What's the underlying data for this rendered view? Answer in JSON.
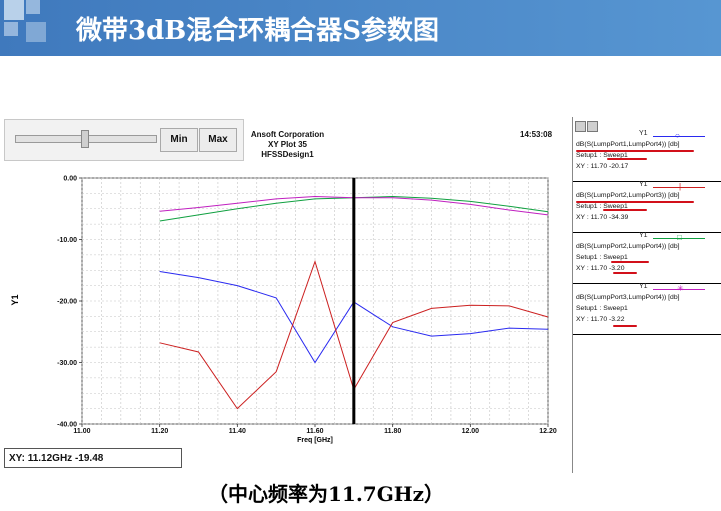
{
  "slide": {
    "title": "微带3dB混合环耦合器S参数图",
    "caption": "（中心频率为11.7GHz）"
  },
  "toolbar": {
    "min_label": "Min",
    "max_label": "Max"
  },
  "plot_header": {
    "company": "Ansoft Corporation",
    "plot_name": "XY Plot 35",
    "design": "HFSSDesign1",
    "time": "14:53:08"
  },
  "readout": "XY: 11.12GHz -19.48",
  "colors": {
    "title_bar": "#4a86c6",
    "s14": "#2a2af0",
    "s13": "#cc2020",
    "s12": "#c020c0",
    "s24": "#10a040"
  },
  "legend": [
    {
      "axis": "Y1",
      "expr": "dB(S(LumpPort1,LumpPort4)) [db]",
      "setup": "Setup1 : Sweep1",
      "readout": "XY : 11.70 -20.17",
      "color": "#2a2af0",
      "marker": "○"
    },
    {
      "axis": "Y1",
      "expr": "dB(S(LumpPort2,LumpPort3)) [db]",
      "setup": "Setup1 : Sweep1",
      "readout": "XY : 11.70 -34.39",
      "color": "#cc2020",
      "marker": "|"
    },
    {
      "axis": "Y1",
      "expr": "dB(S(LumpPort2,LumpPort4)) [db]",
      "setup": "Setup1 : Sweep1",
      "readout": "XY : 11.70 -3.20",
      "color": "#10a040",
      "marker": "□"
    },
    {
      "axis": "Y1",
      "expr": "dB(S(LumpPort3,LumpPort4)) [db]",
      "setup": "Setup1 : Sweep1",
      "readout": "XY : 11.70 -3.22",
      "color": "#c020c0",
      "marker": "✳"
    }
  ],
  "chart_data": {
    "type": "line",
    "title": "XY Plot 35",
    "xlabel": "Freq [GHz]",
    "ylabel": "Y1",
    "xlim": [
      11.0,
      12.2
    ],
    "ylim": [
      -40,
      0
    ],
    "x_ticks": [
      "11.00",
      "11.20",
      "11.40",
      "11.60",
      "11.80",
      "12.00",
      "12.20"
    ],
    "y_ticks": [
      "0.00",
      "-10.00",
      "-20.00",
      "-30.00",
      "-40.00"
    ],
    "grid": true,
    "marker_x": 11.7,
    "x": [
      11.2,
      11.3,
      11.4,
      11.5,
      11.6,
      11.7,
      11.8,
      11.9,
      12.0,
      12.1,
      12.2
    ],
    "series": [
      {
        "name": "dB(S(LumpPort1,LumpPort4))",
        "color": "#2a2af0",
        "values": [
          -15.2,
          -16.2,
          -17.5,
          -19.5,
          -30.0,
          -20.17,
          -24.2,
          -25.7,
          -25.3,
          -24.4,
          -24.6
        ]
      },
      {
        "name": "dB(S(LumpPort2,LumpPort3))",
        "color": "#cc2020",
        "values": [
          -26.8,
          -28.3,
          -37.5,
          -31.5,
          -13.6,
          -34.39,
          -23.5,
          -21.2,
          -20.7,
          -20.8,
          -22.6
        ]
      },
      {
        "name": "dB(S(LumpPort2,LumpPort4))",
        "color": "#10a040",
        "values": [
          -7.0,
          -6.0,
          -5.0,
          -4.1,
          -3.4,
          -3.2,
          -3.0,
          -3.3,
          -3.8,
          -4.6,
          -5.5
        ]
      },
      {
        "name": "dB(S(LumpPort3,LumpPort4))",
        "color": "#c020c0",
        "values": [
          -5.4,
          -4.8,
          -4.1,
          -3.4,
          -3.0,
          -3.22,
          -3.2,
          -3.6,
          -4.3,
          -5.2,
          -6.0
        ]
      }
    ]
  }
}
